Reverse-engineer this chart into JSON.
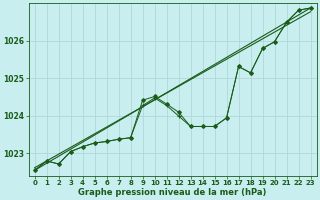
{
  "title": "Graphe pression niveau de la mer (hPa)",
  "background_color": "#c8eef0",
  "grid_color": "#b0d8d8",
  "line_color": "#1a5c1a",
  "text_color": "#1a5c1a",
  "xlim": [
    -0.5,
    23.5
  ],
  "ylim": [
    1022.4,
    1027.0
  ],
  "yticks": [
    1023,
    1024,
    1025,
    1026
  ],
  "xticks": [
    0,
    1,
    2,
    3,
    4,
    5,
    6,
    7,
    8,
    9,
    10,
    11,
    12,
    13,
    14,
    15,
    16,
    17,
    18,
    19,
    20,
    21,
    22,
    23
  ],
  "hours": [
    0,
    1,
    2,
    3,
    4,
    5,
    6,
    7,
    8,
    9,
    10,
    11,
    12,
    13,
    14,
    15,
    16,
    17,
    18,
    19,
    20,
    21,
    22,
    23
  ],
  "wavy1": [
    1022.55,
    1022.8,
    1022.72,
    1023.05,
    1023.18,
    1023.28,
    1023.32,
    1023.38,
    1023.42,
    1024.42,
    1024.52,
    1024.32,
    1024.1,
    1023.72,
    1023.72,
    1023.72,
    1023.95,
    1025.32,
    1025.15,
    1025.8,
    1025.98,
    1026.5,
    1026.82,
    1026.88
  ],
  "wavy2": [
    1022.55,
    1022.8,
    1022.72,
    1023.05,
    1023.18,
    1023.28,
    1023.32,
    1023.38,
    1023.42,
    1024.28,
    1024.48,
    1024.28,
    1024.0,
    1023.72,
    1023.72,
    1023.72,
    1023.95,
    1025.32,
    1025.15,
    1025.8,
    1025.98,
    1026.5,
    1026.82,
    1026.88
  ],
  "trend1_x": [
    0,
    23
  ],
  "trend1_y": [
    1022.55,
    1026.88
  ],
  "trend2_x": [
    0,
    23
  ],
  "trend2_y": [
    1022.62,
    1026.78
  ]
}
